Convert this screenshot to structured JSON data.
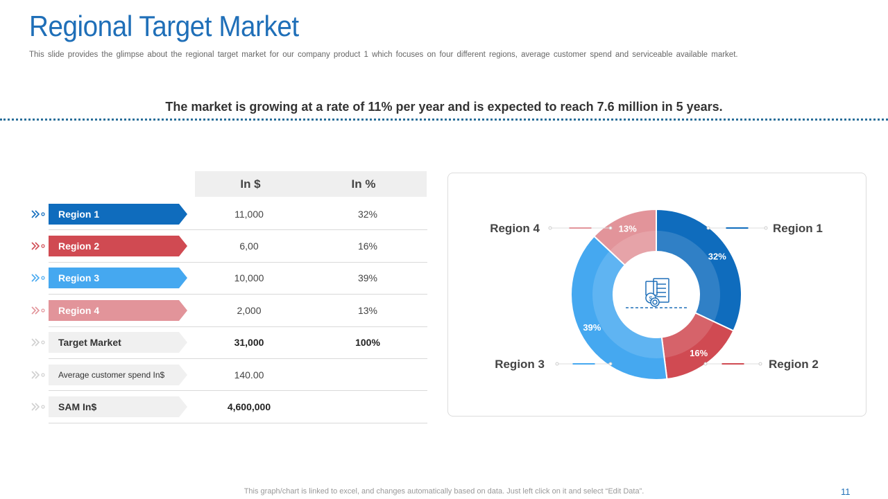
{
  "header": {
    "title": "Regional Target Market",
    "subtitle": "This slide provides the glimpse about the regional target market for our company product 1 which focuses on four different regions, average customer spend and serviceable available market.",
    "headline": "The market is growing at a rate of 11% per year and is expected to reach 7.6 million in 5 years."
  },
  "table": {
    "col_usd": "In $",
    "col_pct": "In %",
    "rows": [
      {
        "label": "Region 1",
        "usd": "11,000",
        "pct": "32%",
        "color": "#0f6cbd"
      },
      {
        "label": "Region 2",
        "usd": "6,00",
        "pct": "16%",
        "color": "#d04a52"
      },
      {
        "label": "Region 3",
        "usd": "10,000",
        "pct": "39%",
        "color": "#45a8f0"
      },
      {
        "label": "Region 4",
        "usd": "2,000",
        "pct": "13%",
        "color": "#e2949a"
      },
      {
        "label": "Target Market",
        "usd": "31,000",
        "pct": "100%",
        "color": "#f0f0f0"
      },
      {
        "label": "Average customer spend In$",
        "usd": "140.00",
        "pct": "",
        "color": "#f0f0f0"
      },
      {
        "label": "SAM In$",
        "usd": "4,600,000",
        "pct": "",
        "color": "#f0f0f0"
      }
    ]
  },
  "chart_data": {
    "type": "pie",
    "categories": [
      "Region 1",
      "Region 2",
      "Region 3",
      "Region 4"
    ],
    "values": [
      32,
      16,
      39,
      13
    ],
    "labels": [
      "32%",
      "16%",
      "39%",
      "13%"
    ],
    "colors": [
      "#0f6cbd",
      "#d04a52",
      "#45a8f0",
      "#e2949a"
    ],
    "center_icon": "market-analysis-icon"
  },
  "footer": {
    "note": "This graph/chart is linked to excel, and changes automatically based on data. Just left click on it and select “Edit Data”.",
    "page_number": "11"
  }
}
